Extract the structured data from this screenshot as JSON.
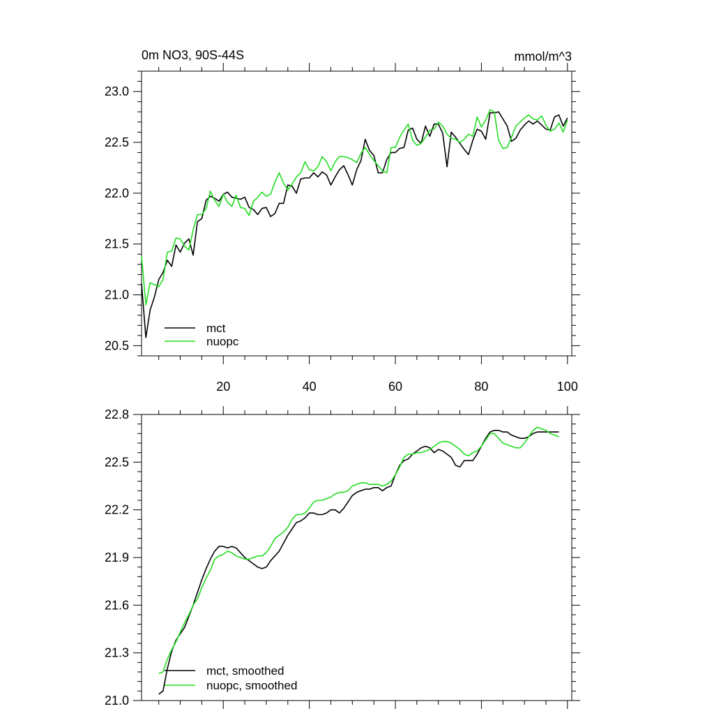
{
  "colors": {
    "mct": "#000000",
    "nuopc": "#22dd22",
    "axes": "#000000",
    "background": "#ffffff"
  },
  "chart_data": [
    {
      "type": "line",
      "title": "0m NO3, 90S-44S",
      "units": "mmol/m^3",
      "xlabel": "",
      "ylabel": "",
      "xlim": [
        1,
        101
      ],
      "ylim": [
        20.4,
        23.2
      ],
      "xticks": [
        20,
        40,
        60,
        80,
        100
      ],
      "yticks": [
        20.5,
        21.0,
        21.5,
        22.0,
        22.5,
        23.0
      ],
      "grid": false,
      "legend_position": "bottom-left",
      "series": [
        {
          "name": "mct",
          "color": "#000000",
          "values": [
            21.11,
            20.58,
            20.85,
            20.98,
            21.15,
            21.22,
            21.34,
            21.28,
            21.49,
            21.42,
            21.51,
            21.55,
            21.39,
            21.72,
            21.75,
            21.93,
            21.97,
            21.95,
            21.92,
            21.99,
            22.01,
            21.96,
            21.95,
            21.94,
            21.96,
            21.86,
            21.84,
            21.79,
            21.85,
            21.86,
            21.77,
            21.8,
            21.9,
            21.9,
            22.08,
            22.07,
            22.0,
            22.14,
            22.15,
            22.15,
            22.2,
            22.16,
            22.21,
            22.18,
            22.08,
            22.16,
            22.23,
            22.27,
            22.18,
            22.08,
            22.23,
            22.32,
            22.53,
            22.42,
            22.37,
            22.2,
            22.2,
            22.33,
            22.4,
            22.4,
            22.44,
            22.45,
            22.62,
            22.64,
            22.53,
            22.49,
            22.66,
            22.56,
            22.68,
            22.68,
            22.59,
            22.26,
            22.6,
            22.55,
            22.49,
            22.43,
            22.38,
            22.52,
            22.63,
            22.61,
            22.53,
            22.79,
            22.79,
            22.8,
            22.73,
            22.66,
            22.51,
            22.54,
            22.62,
            22.67,
            22.71,
            22.68,
            22.71,
            22.67,
            22.63,
            22.62,
            22.75,
            22.77,
            22.66,
            22.74
          ]
        },
        {
          "name": "nuopc",
          "color": "#22dd22",
          "values": [
            21.38,
            20.9,
            21.12,
            21.1,
            21.08,
            21.15,
            21.42,
            21.43,
            21.56,
            21.55,
            21.48,
            21.44,
            21.64,
            21.79,
            21.79,
            21.85,
            22.02,
            21.93,
            21.87,
            21.99,
            21.91,
            21.87,
            21.98,
            21.86,
            21.85,
            21.78,
            21.92,
            21.96,
            22.01,
            21.97,
            21.99,
            22.11,
            22.2,
            22.1,
            22.03,
            22.09,
            22.16,
            22.2,
            22.31,
            22.23,
            22.22,
            22.26,
            22.36,
            22.31,
            22.22,
            22.31,
            22.36,
            22.36,
            22.35,
            22.33,
            22.3,
            22.39,
            22.45,
            22.38,
            22.32,
            22.27,
            22.22,
            22.2,
            22.45,
            22.45,
            22.55,
            22.62,
            22.68,
            22.52,
            22.47,
            22.49,
            22.55,
            22.62,
            22.63,
            22.7,
            22.66,
            22.58,
            22.54,
            22.53,
            22.5,
            22.53,
            22.58,
            22.56,
            22.75,
            22.65,
            22.72,
            22.82,
            22.8,
            22.52,
            22.44,
            22.45,
            22.55,
            22.66,
            22.7,
            22.74,
            22.77,
            22.73,
            22.72,
            22.76,
            22.67,
            22.61,
            22.63,
            22.69,
            22.6,
            22.72
          ]
        }
      ]
    },
    {
      "type": "line",
      "title": "",
      "xlabel": "",
      "ylabel": "",
      "xlim": [
        1,
        101
      ],
      "ylim": [
        21.0,
        22.8
      ],
      "xticks": [
        20,
        40,
        60,
        80,
        100
      ],
      "yticks": [
        21.0,
        21.3,
        21.6,
        21.9,
        22.2,
        22.5,
        22.8
      ],
      "grid": false,
      "legend_position": "bottom-left",
      "series": [
        {
          "name": "mct, smoothed",
          "color": "#000000",
          "x_start": 5,
          "values": [
            21.04,
            21.06,
            21.2,
            21.31,
            21.38,
            21.42,
            21.46,
            21.53,
            21.6,
            21.68,
            21.76,
            21.83,
            21.89,
            21.94,
            21.97,
            21.97,
            21.96,
            21.97,
            21.96,
            21.93,
            21.9,
            21.88,
            21.86,
            21.84,
            21.83,
            21.84,
            21.88,
            21.91,
            21.94,
            21.99,
            22.04,
            22.08,
            22.12,
            22.13,
            22.15,
            22.18,
            22.18,
            22.17,
            22.17,
            22.18,
            22.2,
            22.2,
            22.18,
            22.21,
            22.25,
            22.29,
            22.31,
            22.32,
            22.33,
            22.33,
            22.34,
            22.34,
            22.32,
            22.34,
            22.35,
            22.42,
            22.48,
            22.51,
            22.52,
            22.55,
            22.57,
            22.59,
            22.6,
            22.59,
            22.56,
            22.58,
            22.57,
            22.55,
            22.53,
            22.48,
            22.47,
            22.51,
            22.51,
            22.51,
            22.55,
            22.6,
            22.65,
            22.69,
            22.7,
            22.7,
            22.69,
            22.69,
            22.67,
            22.66,
            22.65,
            22.65,
            22.66,
            22.68,
            22.69,
            22.69,
            22.69,
            22.69,
            22.69,
            22.69
          ]
        },
        {
          "name": "nuopc, smoothed",
          "color": "#22dd22",
          "x_start": 5,
          "values": [
            21.17,
            21.18,
            21.26,
            21.32,
            21.37,
            21.43,
            21.49,
            21.54,
            21.6,
            21.64,
            21.71,
            21.77,
            21.82,
            21.89,
            21.91,
            21.92,
            21.94,
            21.93,
            21.91,
            21.9,
            21.89,
            21.89,
            21.9,
            21.91,
            21.91,
            21.93,
            21.97,
            22.02,
            22.04,
            22.06,
            22.09,
            22.14,
            22.17,
            22.17,
            22.18,
            22.21,
            22.25,
            22.26,
            22.26,
            22.27,
            22.28,
            22.3,
            22.31,
            22.31,
            22.32,
            22.35,
            22.36,
            22.37,
            22.37,
            22.36,
            22.36,
            22.36,
            22.35,
            22.36,
            22.38,
            22.42,
            22.47,
            22.53,
            22.55,
            22.55,
            22.56,
            22.56,
            22.57,
            22.58,
            22.6,
            22.62,
            22.63,
            22.63,
            22.62,
            22.6,
            22.58,
            22.55,
            22.54,
            22.56,
            22.57,
            22.6,
            22.64,
            22.68,
            22.68,
            22.65,
            22.62,
            22.61,
            22.6,
            22.59,
            22.59,
            22.62,
            22.66,
            22.7,
            22.72,
            22.71,
            22.7,
            22.68,
            22.67,
            22.66
          ]
        }
      ]
    }
  ]
}
